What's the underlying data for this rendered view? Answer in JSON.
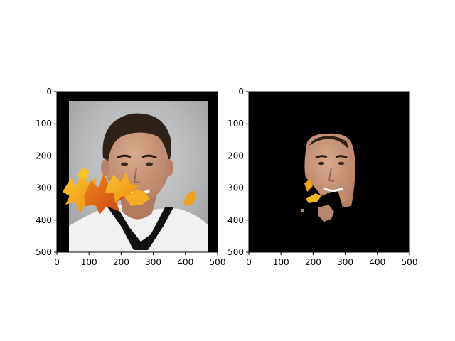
{
  "chart_data": [
    {
      "type": "image",
      "panel": "left",
      "content": "face photo with autumn leaves overlay",
      "xlim": [
        0,
        500
      ],
      "ylim": [
        500,
        0
      ],
      "xticks": [
        "0",
        "100",
        "200",
        "300",
        "400",
        "500"
      ],
      "yticks": [
        "0",
        "100",
        "200",
        "300",
        "400",
        "500"
      ]
    },
    {
      "type": "image",
      "panel": "right",
      "content": "segmented face region on black background",
      "xlim": [
        0,
        500
      ],
      "ylim": [
        500,
        0
      ],
      "xticks": [
        "0",
        "100",
        "200",
        "300",
        "400",
        "500"
      ],
      "yticks": [
        "0",
        "100",
        "200",
        "300",
        "400",
        "500"
      ]
    }
  ],
  "colors": {
    "background": "#ffffff",
    "frame": "#000000",
    "photo_backdrop": "#b9bbbc",
    "skin": "#c8957a",
    "hair": "#2e2218",
    "shirt": "#f2f2f2",
    "leaf_orange": "#f39a14",
    "leaf_yellow": "#f7c32a",
    "leaf_red": "#d9541a"
  }
}
